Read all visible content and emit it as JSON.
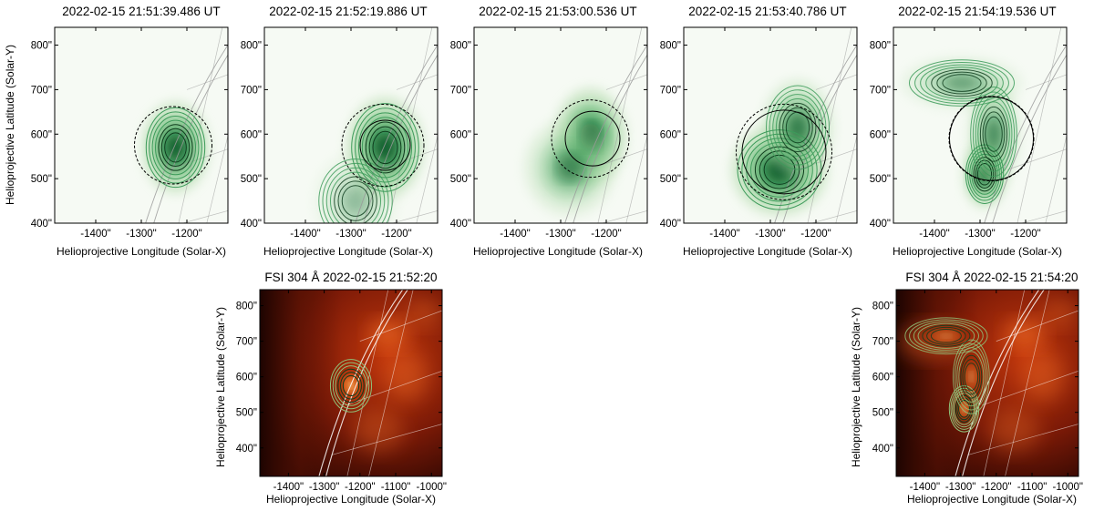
{
  "figure": {
    "xlabel": "Helioprojective Longitude (Solar-X)",
    "ylabel": "Helioprojective Latitude (Solar-Y)"
  },
  "colors": {
    "sti_cmap_low": "#f6faf4",
    "sti_cmap_high": "#0b5a2a",
    "contour": "#3d9b5a",
    "contour_dark": "#0f3d1d",
    "limb_grid_sti": "#9a9a9a",
    "fsi_background": "#7a1a08",
    "fsi_bright": "#ff7a2a",
    "limb_grid_fsi": "#ffffff"
  },
  "chart_data": [
    {
      "type": "heatmap",
      "instrument": "STIX",
      "panel": "sti-1",
      "title": "2022-02-15 21:51:39.486 UT",
      "xlim": [
        -1490,
        -1110
      ],
      "ylim": [
        400,
        840
      ],
      "xticks": [
        -1400,
        -1300,
        -1200
      ],
      "yticks": [
        400,
        500,
        600,
        700,
        800
      ],
      "xticklabels": [
        "-1400\"",
        "-1300\"",
        "-1200\""
      ],
      "yticklabels": [
        "400\"",
        "500\"",
        "600\"",
        "700\"",
        "800\""
      ],
      "sources": [
        {
          "x": -1225,
          "y": 570,
          "sx": 28,
          "sy": 38,
          "amp": 1.0
        }
      ],
      "contour_levels": 7,
      "circle_solid": {
        "x": -1225,
        "y": 570,
        "r": 0
      },
      "circle_dashed": {
        "x": -1230,
        "y": 575,
        "r": 85
      }
    },
    {
      "type": "heatmap",
      "instrument": "STIX",
      "panel": "sti-2",
      "title": "2022-02-15 21:52:19.886 UT",
      "xlim": [
        -1490,
        -1110
      ],
      "ylim": [
        400,
        840
      ],
      "xticks": [
        -1400,
        -1300,
        -1200
      ],
      "yticks": [
        400,
        500,
        600,
        700,
        800
      ],
      "xticklabels": [
        "-1400\"",
        "-1300\"",
        "-1200\""
      ],
      "yticklabels": [
        "400\"",
        "500\"",
        "600\"",
        "700\"",
        "800\""
      ],
      "sources": [
        {
          "x": -1225,
          "y": 570,
          "sx": 32,
          "sy": 42,
          "amp": 1.0
        },
        {
          "x": -1290,
          "y": 450,
          "sx": 35,
          "sy": 40,
          "amp": 0.25
        }
      ],
      "contour_levels": 7,
      "circle_solid": {
        "x": -1225,
        "y": 575,
        "r": 55
      },
      "circle_dashed": {
        "x": -1230,
        "y": 575,
        "r": 90
      }
    },
    {
      "type": "heatmap",
      "instrument": "STIX",
      "panel": "sti-3",
      "title": "2022-02-15 21:53:00.536 UT",
      "xlim": [
        -1490,
        -1110
      ],
      "ylim": [
        400,
        840
      ],
      "xticks": [
        -1400,
        -1300,
        -1200
      ],
      "yticks": [
        400,
        500,
        600,
        700,
        800
      ],
      "xticklabels": [
        "-1400\"",
        "-1300\"",
        "-1200\""
      ],
      "yticklabels": [
        "400\"",
        "500\"",
        "600\"",
        "700\"",
        "800\""
      ],
      "sources": [
        {
          "x": -1235,
          "y": 595,
          "sx": 30,
          "sy": 40,
          "amp": 1.0
        },
        {
          "x": -1280,
          "y": 525,
          "sx": 38,
          "sy": 40,
          "amp": 0.55
        }
      ],
      "contour_levels": 0,
      "circle_solid": {
        "x": -1230,
        "y": 590,
        "r": 60
      },
      "circle_dashed": {
        "x": -1235,
        "y": 590,
        "r": 85
      }
    },
    {
      "type": "heatmap",
      "instrument": "STIX",
      "panel": "sti-4",
      "title": "2022-02-15 21:53:40.786 UT",
      "xlim": [
        -1490,
        -1110
      ],
      "ylim": [
        400,
        840
      ],
      "xticks": [
        -1400,
        -1300,
        -1200
      ],
      "yticks": [
        400,
        500,
        600,
        700,
        800
      ],
      "xticklabels": [
        "-1400\"",
        "-1300\"",
        "-1200\""
      ],
      "yticklabels": [
        "400\"",
        "500\"",
        "600\"",
        "700\"",
        "800\""
      ],
      "sources": [
        {
          "x": -1280,
          "y": 520,
          "sx": 40,
          "sy": 38,
          "amp": 1.0
        },
        {
          "x": -1240,
          "y": 615,
          "sx": 30,
          "sy": 40,
          "amp": 0.65
        }
      ],
      "contour_levels": 7,
      "circle_solid": {
        "x": -1270,
        "y": 560,
        "r": 92
      },
      "circle_dashed": {
        "x": -1270,
        "y": 560,
        "r": 105
      }
    },
    {
      "type": "heatmap",
      "instrument": "STIX",
      "panel": "sti-5",
      "title": "2022-02-15 21:54:19.536 UT",
      "xlim": [
        -1490,
        -1110
      ],
      "ylim": [
        400,
        840
      ],
      "xticks": [
        -1400,
        -1300,
        -1200
      ],
      "yticks": [
        400,
        500,
        600,
        700,
        800
      ],
      "xticklabels": [
        "-1400\"",
        "-1300\"",
        "-1200\""
      ],
      "yticklabels": [
        "400\"",
        "500\"",
        "600\"",
        "700\"",
        "800\""
      ],
      "sources": [
        {
          "x": -1290,
          "y": 510,
          "sx": 18,
          "sy": 28,
          "amp": 1.0
        },
        {
          "x": -1270,
          "y": 600,
          "sx": 22,
          "sy": 45,
          "amp": 0.55
        },
        {
          "x": -1340,
          "y": 715,
          "sx": 50,
          "sy": 22,
          "amp": 0.4
        }
      ],
      "contour_levels": 7,
      "circle_solid": {
        "x": -1275,
        "y": 590,
        "r": 92
      },
      "circle_dashed": {
        "x": -1275,
        "y": 590,
        "r": 93
      }
    },
    {
      "type": "heatmap",
      "instrument": "FSI",
      "panel": "fsi-1",
      "title": "FSI 304 Å 2022-02-15 21:52:20",
      "xlim": [
        -1480,
        -970
      ],
      "ylim": [
        320,
        845
      ],
      "xticks": [
        -1400,
        -1300,
        -1200,
        -1100,
        -1000
      ],
      "yticks": [
        400,
        500,
        600,
        700,
        800
      ],
      "xticklabels": [
        "-1400\"",
        "-1300\"",
        "-1200\"",
        "-1100\"",
        "-1000\""
      ],
      "yticklabels": [
        "400\"",
        "500\"",
        "600\"",
        "700\"",
        "800\""
      ],
      "sources": [
        {
          "x": -1225,
          "y": 575,
          "sx": 25,
          "sy": 32,
          "amp": 1.0
        }
      ],
      "contour_levels": 6
    },
    {
      "type": "heatmap",
      "instrument": "FSI",
      "panel": "fsi-2",
      "title": "FSI 304 Å 2022-02-15 21:54:20",
      "xlim": [
        -1480,
        -970
      ],
      "ylim": [
        320,
        845
      ],
      "xticks": [
        -1400,
        -1300,
        -1200,
        -1100,
        -1000
      ],
      "yticks": [
        400,
        500,
        600,
        700,
        800
      ],
      "xticklabels": [
        "-1400\"",
        "-1300\"",
        "-1200\"",
        "-1100\"",
        "-1000\""
      ],
      "yticklabels": [
        "400\"",
        "500\"",
        "600\"",
        "700\"",
        "800\""
      ],
      "sources": [
        {
          "x": -1290,
          "y": 510,
          "sx": 18,
          "sy": 28,
          "amp": 1.0
        },
        {
          "x": -1270,
          "y": 600,
          "sx": 22,
          "sy": 45,
          "amp": 0.55
        },
        {
          "x": -1340,
          "y": 715,
          "sx": 50,
          "sy": 22,
          "amp": 0.4
        }
      ],
      "contour_levels": 7
    }
  ]
}
